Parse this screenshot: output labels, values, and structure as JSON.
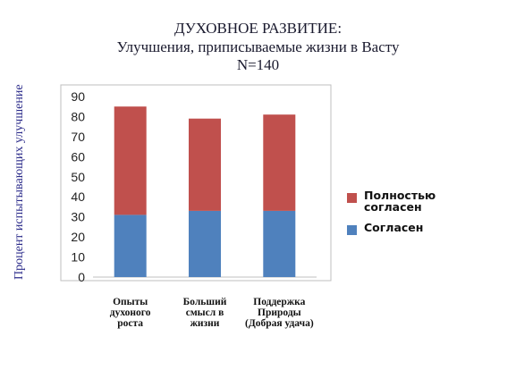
{
  "chart_data": {
    "type": "bar",
    "stacked": true,
    "title_lines": [
      "ДУХОВНОЕ РАЗВИТИЕ:",
      "Улучшения, приписываемые жизни в Васту",
      "N=140"
    ],
    "ylabel": "Процент испытывающих улучшение",
    "xlabel": "",
    "categories": [
      "Опыты духоного роста",
      "Больший смысл в жизни",
      "Поддержка Природы (Добрая удача)"
    ],
    "category_lines": [
      [
        "Опыты",
        "духоного",
        "роста"
      ],
      [
        "Больший",
        "смысл в",
        "жизни"
      ],
      [
        "Поддержка",
        "Природы",
        "(Добрая удача)"
      ]
    ],
    "series": [
      {
        "name": "Согласен",
        "values": [
          31,
          33,
          33
        ],
        "color": "#4f81bd"
      },
      {
        "name": "Полностью согласен",
        "values": [
          54,
          46,
          48
        ],
        "color": "#c0504d"
      }
    ],
    "ylim": [
      0,
      90
    ],
    "yticks": [
      0,
      10,
      20,
      30,
      40,
      50,
      60,
      70,
      80,
      90
    ],
    "grid": false,
    "legend": {
      "placement": "right",
      "order": [
        1,
        0
      ],
      "label_lines": {
        "Полностью согласен": [
          "Полностью",
          "согласен"
        ],
        "Согласен": [
          "Согласен"
        ]
      }
    }
  }
}
